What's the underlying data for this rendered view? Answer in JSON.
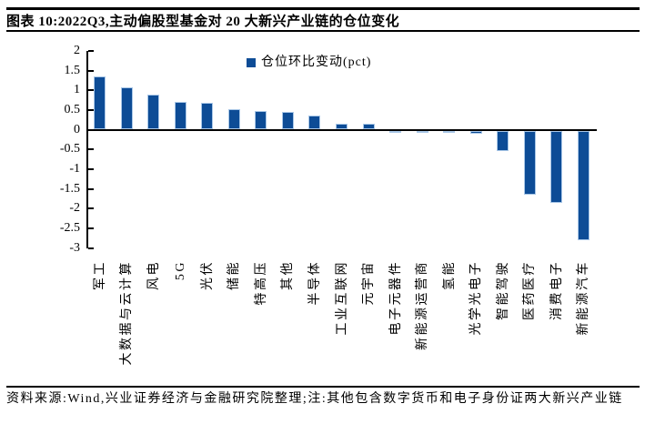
{
  "header": {
    "title": "图表 10:2022Q3,主动偏股型基金对 20 大新兴产业链的仓位变化"
  },
  "footer": {
    "source": "资料来源:Wind,兴业证券经济与金融研究院整理;注:其他包含数字货币和电子身份证两大新兴产业链"
  },
  "chart_data": {
    "type": "bar",
    "title": "",
    "legend_label": "仓位环比变动(pct)",
    "legend_position": "top-center",
    "categories": [
      "军工",
      "大数据与云计算",
      "风电",
      "5G",
      "光伏",
      "储能",
      "特高压",
      "其他",
      "半导体",
      "工业互联网",
      "元宇宙",
      "电子元器件",
      "新能源运营商",
      "氢能",
      "光学光电子",
      "智能驾驶",
      "医药医疗",
      "消费电子",
      "新能源汽车"
    ],
    "values": [
      1.34,
      1.05,
      0.87,
      0.69,
      0.66,
      0.51,
      0.45,
      0.42,
      0.33,
      0.13,
      0.12,
      -0.01,
      -0.02,
      -0.05,
      -0.07,
      -0.51,
      -1.62,
      -1.82,
      -2.78
    ],
    "ylim": [
      -3,
      2
    ],
    "yticks": [
      "2",
      "1.5",
      "1",
      "0.5",
      "0",
      "-0.5",
      "-1",
      "-1.5",
      "-2",
      "-2.5",
      "-3"
    ],
    "grid": false,
    "bar_color": "#0d4c96",
    "bar_border_color": "#a9c7e7",
    "xlabel": "",
    "ylabel": ""
  }
}
